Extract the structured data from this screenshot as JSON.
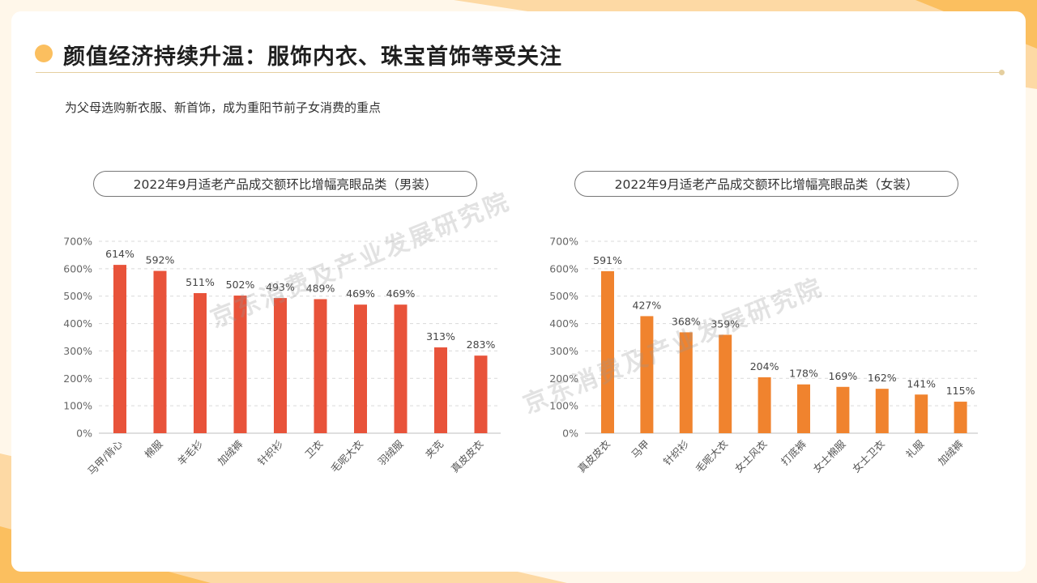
{
  "header": {
    "title": "颜值经济持续升温：服饰内衣、珠宝首饰等受关注",
    "subtitle": "为父母选购新衣服、新首饰，成为重阳节前子女消费的重点"
  },
  "watermark": "京东消费及产业发展研究院",
  "colors": {
    "men_bar": "#e8533a",
    "women_bar": "#f0832e",
    "accent": "#fbbf5f",
    "grid": "#d9d9d9"
  },
  "chart_data": [
    {
      "type": "bar",
      "title": "2022年9月适老产品成交额环比增幅亮眼品类（男装）",
      "categories": [
        "马甲/背心",
        "棉服",
        "羊毛衫",
        "加绒裤",
        "针织衫",
        "卫衣",
        "毛呢大衣",
        "羽绒服",
        "夹克",
        "真皮皮衣"
      ],
      "values": [
        614,
        592,
        511,
        502,
        493,
        489,
        469,
        469,
        313,
        283
      ],
      "value_labels": [
        "614%",
        "592%",
        "511%",
        "502%",
        "493%",
        "489%",
        "469%",
        "469%",
        "313%",
        "283%"
      ],
      "ylim": [
        0,
        700
      ],
      "yticks": [
        "0%",
        "100%",
        "200%",
        "300%",
        "400%",
        "500%",
        "600%",
        "700%"
      ],
      "grid": true,
      "color": "#e8533a"
    },
    {
      "type": "bar",
      "title": "2022年9月适老产品成交额环比增幅亮眼品类（女装）",
      "categories": [
        "真皮皮衣",
        "马甲",
        "针织衫",
        "毛呢大衣",
        "女士风衣",
        "打底裤",
        "女士棉服",
        "女士卫衣",
        "礼服",
        "加绒裤"
      ],
      "values": [
        591,
        427,
        368,
        359,
        204,
        178,
        169,
        162,
        141,
        115
      ],
      "value_labels": [
        "591%",
        "427%",
        "368%",
        "359%",
        "204%",
        "178%",
        "169%",
        "162%",
        "141%",
        "115%"
      ],
      "ylim": [
        0,
        700
      ],
      "yticks": [
        "0%",
        "100%",
        "200%",
        "300%",
        "400%",
        "500%",
        "600%",
        "700%"
      ],
      "grid": true,
      "color": "#f0832e"
    }
  ]
}
